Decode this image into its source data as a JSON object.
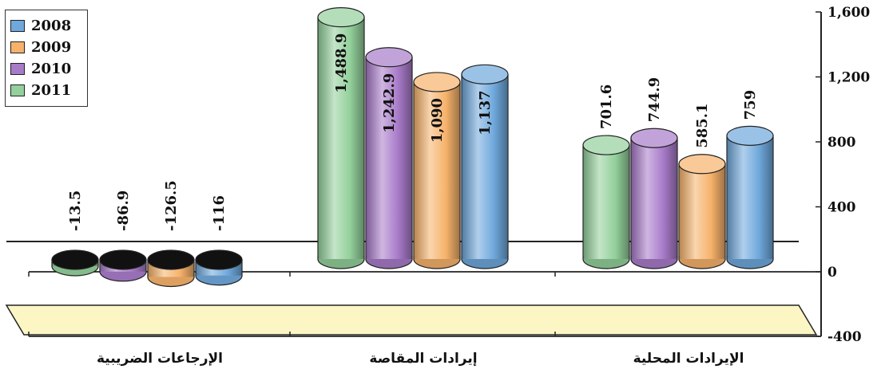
{
  "chart_data": {
    "type": "bar",
    "categories": [
      "الإرجاعات الضريبية",
      "إيرادات المقاصة",
      "الإيرادات المحلية"
    ],
    "series": [
      {
        "name": "2008",
        "color": "#6fa8dc",
        "values": [
          -116,
          1137,
          759
        ],
        "labels": [
          "-116",
          "1,137",
          "759"
        ]
      },
      {
        "name": "2009",
        "color": "#f6b26b",
        "values": [
          -126.5,
          1090,
          585.1
        ],
        "labels": [
          "-126.5",
          "1,090",
          "585.1"
        ]
      },
      {
        "name": "2010",
        "color": "#a87bc9",
        "values": [
          -86.9,
          1242.9,
          744.9
        ],
        "labels": [
          "-86.9",
          "1,242.9",
          "744.9"
        ]
      },
      {
        "name": "2011",
        "color": "#93d09b",
        "values": [
          -13.5,
          1488.9,
          701.6
        ],
        "labels": [
          "-13.5",
          "1,488.9",
          "701.6"
        ]
      }
    ],
    "ylim": [
      -400,
      1600
    ],
    "yticks": [
      "-400",
      "0",
      "400",
      "800",
      "1,200",
      "1,600"
    ],
    "ytick_values": [
      -400,
      0,
      400,
      800,
      1200,
      1600
    ],
    "y_axis_side": "right",
    "legend_position": "top-left",
    "grid": false
  }
}
